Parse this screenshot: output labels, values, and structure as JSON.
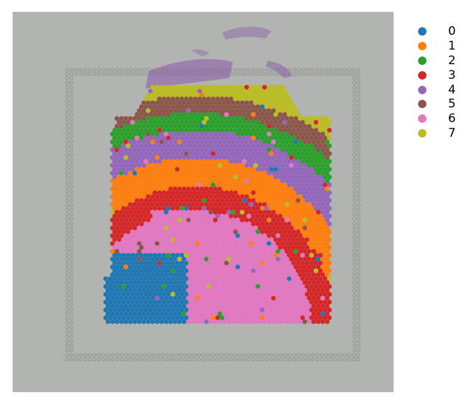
{
  "legend": {
    "items": [
      {
        "label": "0",
        "color": "#1f77b4"
      },
      {
        "label": "1",
        "color": "#ff7f0e"
      },
      {
        "label": "2",
        "color": "#2ca02c"
      },
      {
        "label": "3",
        "color": "#d62728"
      },
      {
        "label": "4",
        "color": "#9467bd"
      },
      {
        "label": "5",
        "color": "#8c564b"
      },
      {
        "label": "6",
        "color": "#e377c2"
      },
      {
        "label": "7",
        "color": "#bcbd22"
      }
    ]
  },
  "colors": {
    "background": "#b2b4b1",
    "fiducial": "#8f918e",
    "stain": "#8a5aa8"
  }
}
